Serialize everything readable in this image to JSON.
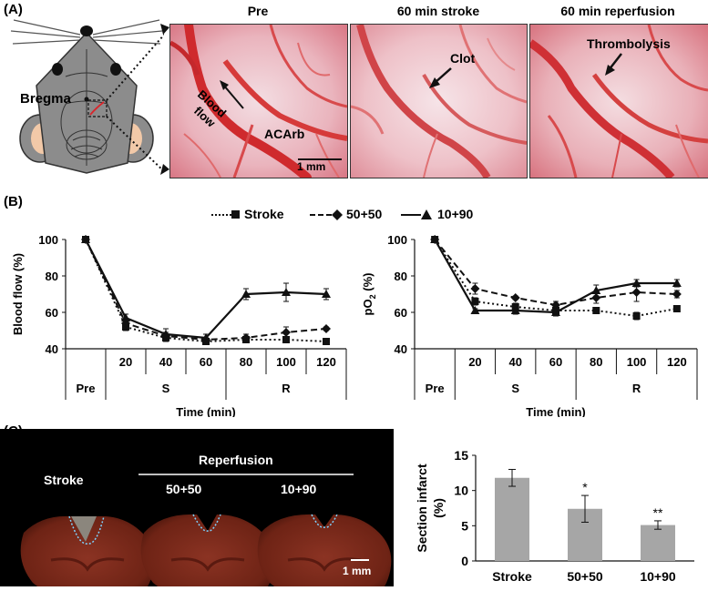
{
  "panels": {
    "a": {
      "label": "(A)",
      "bregma": "Bregma",
      "photos": [
        {
          "title": "Pre",
          "annotations": [
            "Blood flow",
            "ACArb",
            "1 mm"
          ]
        },
        {
          "title": "60 min stroke",
          "annotations": [
            "Clot"
          ]
        },
        {
          "title": "60 min reperfusion",
          "annotations": [
            "Thrombolysis"
          ]
        }
      ],
      "blood_label_line1": "Blood",
      "blood_label_line2": "flow",
      "acarb": "ACArb",
      "scale": "1 mm",
      "clot": "Clot",
      "thrombolysis": "Thrombolysis"
    },
    "b": {
      "label": "(B)",
      "legend": [
        "Stroke",
        "50+50",
        "10+90"
      ]
    },
    "c": {
      "label": "(C)",
      "reperfusion": "Reperfusion",
      "stroke": "Stroke",
      "g1": "50+50",
      "g2": "10+90",
      "scale": "1 mm"
    }
  },
  "chart_data": [
    {
      "type": "line",
      "ylabel": "Blood flow (%)",
      "xlabel": "Time (min)",
      "x": [
        "Pre",
        "20",
        "40",
        "60",
        "80",
        "100",
        "120"
      ],
      "group_labels": [
        "Pre",
        "S",
        "R"
      ],
      "ylim": [
        40,
        100
      ],
      "yticks": [
        "40",
        "60",
        "80",
        "100"
      ],
      "series": [
        {
          "name": "Stroke",
          "values": [
            100,
            52,
            46,
            44,
            45,
            45,
            44
          ],
          "errors": [
            0,
            2,
            2,
            1,
            1,
            1,
            1
          ]
        },
        {
          "name": "50+50",
          "values": [
            100,
            54,
            47,
            45,
            46,
            49,
            51
          ],
          "errors": [
            0,
            2,
            2,
            1,
            2,
            3,
            1
          ]
        },
        {
          "name": "10+90",
          "values": [
            100,
            57,
            48,
            46,
            70,
            71,
            70
          ],
          "errors": [
            0,
            2,
            3,
            2,
            3,
            5,
            3
          ]
        }
      ]
    },
    {
      "type": "line",
      "ylabel": "pO2 (%)",
      "xlabel": "Time (min)",
      "x": [
        "Pre",
        "20",
        "40",
        "60",
        "80",
        "100",
        "120"
      ],
      "group_labels": [
        "Pre",
        "S",
        "R"
      ],
      "ylim": [
        40,
        100
      ],
      "yticks": [
        "40",
        "60",
        "80",
        "100"
      ],
      "series": [
        {
          "name": "Stroke",
          "values": [
            100,
            66,
            63,
            61,
            61,
            58,
            62
          ],
          "errors": [
            0,
            2,
            2,
            2,
            1,
            2,
            1
          ]
        },
        {
          "name": "50+50",
          "values": [
            100,
            73,
            68,
            64,
            68,
            71,
            70
          ],
          "errors": [
            0,
            3,
            1,
            2,
            3,
            5,
            2
          ]
        },
        {
          "name": "10+90",
          "values": [
            100,
            61,
            61,
            60,
            72,
            76,
            76
          ],
          "errors": [
            0,
            1,
            2,
            2,
            3,
            2,
            2
          ]
        }
      ]
    },
    {
      "type": "bar",
      "ylabel": "Section infarct (%)",
      "categories": [
        "Stroke",
        "50+50",
        "10+90"
      ],
      "values": [
        11.8,
        7.4,
        5.1
      ],
      "errors": [
        1.2,
        1.9,
        0.6
      ],
      "significance": [
        "",
        "*",
        "**"
      ],
      "ylim": [
        0,
        15
      ],
      "yticks": [
        "0",
        "5",
        "10",
        "15"
      ]
    }
  ]
}
